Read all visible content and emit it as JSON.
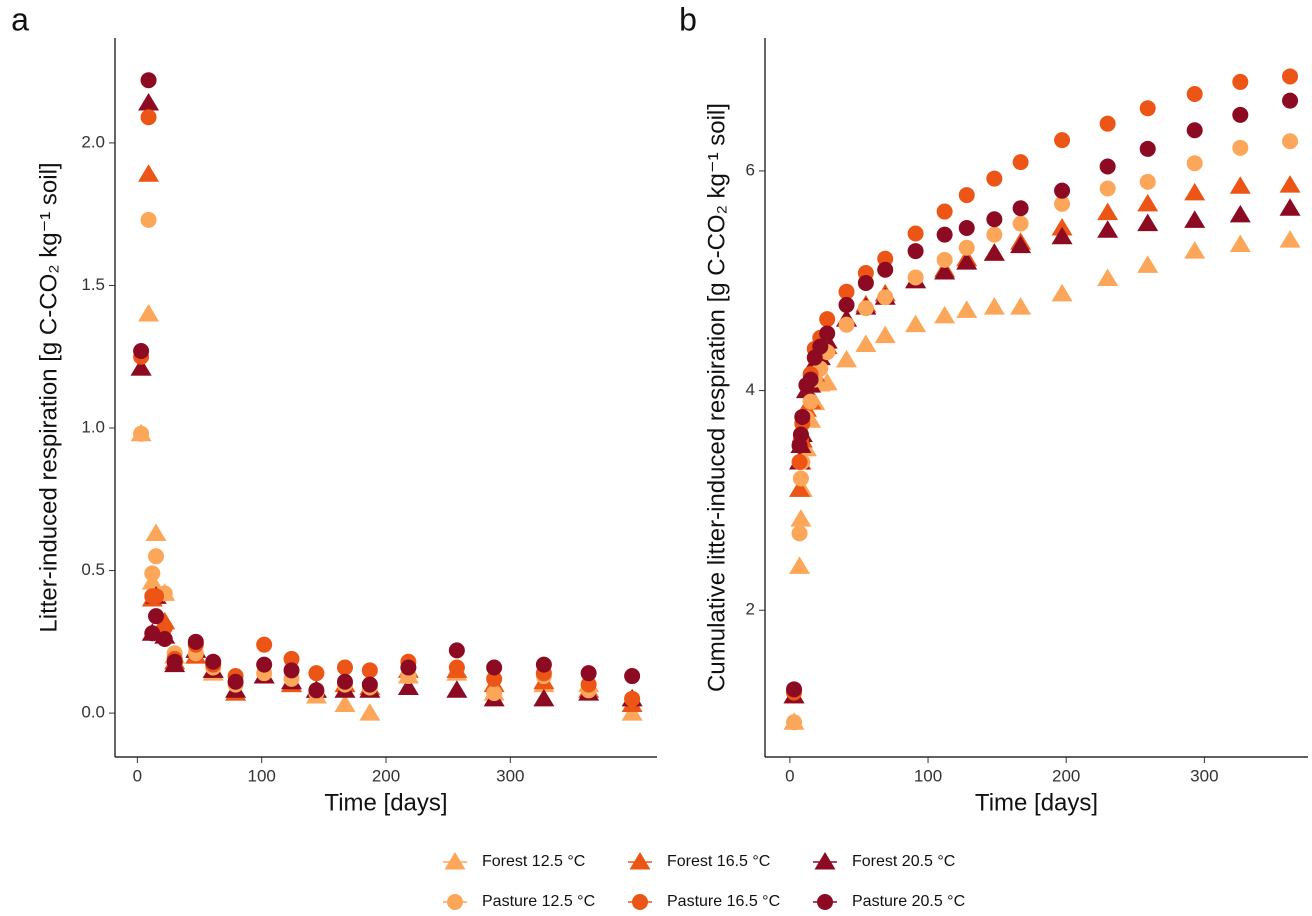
{
  "charts": [
    {
      "type": "scatter",
      "title": "a",
      "x_label": "Time [days]",
      "y_label": "Litter-induced respiration [g C-CO₂ kg⁻¹ soil]",
      "x": [
        3,
        9,
        12,
        15,
        22,
        30,
        47,
        61,
        79,
        102,
        124,
        144,
        167,
        187,
        218,
        257,
        287,
        327,
        363,
        398
      ],
      "xlim": [
        -18,
        418
      ],
      "xticks": [
        0,
        100,
        200,
        300
      ],
      "ylim": [
        -0.154,
        2.368
      ],
      "yticks": [
        {
          "value": 0,
          "label": "0.0"
        },
        0.5,
        {
          "value": 1,
          "label": "1.0"
        },
        1.5,
        {
          "value": 2,
          "label": "2.0"
        }
      ],
      "series": [
        {
          "color": "#fca65a",
          "marker": "triangle",
          "values": [
            0.98,
            1.4,
            0.46,
            0.63,
            0.42,
            0.2,
            0.2,
            0.14,
            0.07,
            0.13,
            0.1,
            0.06,
            0.03,
            0.0,
            0.13,
            0.14,
            0.07,
            0.1,
            0.1,
            0.0
          ]
        },
        {
          "color": "#ec5516",
          "marker": "triangle",
          "values": [
            1.21,
            1.89,
            0.4,
            0.41,
            0.32,
            0.18,
            0.2,
            0.15,
            0.07,
            0.13,
            0.1,
            0.08,
            0.1,
            0.09,
            0.15,
            0.15,
            0.1,
            0.11,
            0.08,
            0.03
          ]
        },
        {
          "color": "#8c0a22",
          "marker": "triangle",
          "values": [
            1.21,
            2.14,
            0.28,
            0.41,
            0.27,
            0.17,
            0.22,
            0.15,
            0.08,
            0.13,
            0.11,
            0.08,
            0.08,
            0.08,
            0.09,
            0.08,
            0.05,
            0.05,
            0.07,
            0.05
          ]
        },
        {
          "color": "#fca65a",
          "marker": "circle",
          "values": [
            0.98,
            1.73,
            0.49,
            0.55,
            0.42,
            0.21,
            0.21,
            0.16,
            0.1,
            0.14,
            0.12,
            0.07,
            0.1,
            0.09,
            0.13,
            0.16,
            0.07,
            0.13,
            0.08,
            0.05
          ]
        },
        {
          "color": "#ec5516",
          "marker": "circle",
          "values": [
            1.25,
            2.09,
            0.41,
            0.41,
            0.3,
            0.19,
            0.24,
            0.17,
            0.13,
            0.24,
            0.19,
            0.14,
            0.16,
            0.15,
            0.18,
            0.16,
            0.12,
            0.14,
            0.1,
            0.05
          ]
        },
        {
          "color": "#8c0a22",
          "marker": "circle",
          "values": [
            1.27,
            2.22,
            0.28,
            0.34,
            0.26,
            0.18,
            0.25,
            0.18,
            0.11,
            0.17,
            0.15,
            0.08,
            0.11,
            0.1,
            0.16,
            0.22,
            0.16,
            0.17,
            0.14,
            0.13
          ]
        }
      ]
    },
    {
      "type": "scatter",
      "title": "b",
      "x_label": "Time [days]",
      "y_label": "Cumulative litter-induced respiration [g C-CO₂ kg⁻¹ soil]",
      "x": [
        3,
        7,
        8,
        9,
        12,
        15,
        18,
        22,
        27,
        41,
        55,
        69,
        91,
        112,
        128,
        148,
        167,
        197,
        230,
        259,
        293,
        326,
        362
      ],
      "xlim": [
        -18,
        375
      ],
      "xticks": [
        0,
        100,
        200,
        300
      ],
      "ylim": [
        0.664,
        7.21
      ],
      "yticks": [
        2,
        4,
        6
      ],
      "series": [
        {
          "color": "#fca65a",
          "marker": "triangle",
          "values": [
            0.98,
            2.4,
            2.83,
            3.1,
            3.47,
            3.73,
            3.89,
            4.06,
            4.07,
            4.28,
            4.42,
            4.5,
            4.6,
            4.68,
            4.73,
            4.76,
            4.76,
            4.88,
            5.02,
            5.14,
            5.27,
            5.33,
            5.37
          ]
        },
        {
          "color": "#ec5516",
          "marker": "triangle",
          "values": [
            1.22,
            3.1,
            3.35,
            3.55,
            3.83,
            3.9,
            4.15,
            4.3,
            4.4,
            4.65,
            4.78,
            4.88,
            5.0,
            5.1,
            5.2,
            5.25,
            5.35,
            5.48,
            5.62,
            5.7,
            5.8,
            5.86,
            5.87
          ]
        },
        {
          "color": "#8c0a22",
          "marker": "triangle",
          "values": [
            1.22,
            3.35,
            3.5,
            3.6,
            4.0,
            4.05,
            4.25,
            4.3,
            4.45,
            4.65,
            4.76,
            4.85,
            5.0,
            5.08,
            5.17,
            5.25,
            5.32,
            5.4,
            5.46,
            5.52,
            5.55,
            5.6,
            5.66
          ]
        },
        {
          "color": "#fca65a",
          "marker": "circle",
          "values": [
            0.98,
            2.7,
            3.2,
            3.35,
            3.75,
            3.9,
            4.1,
            4.2,
            4.35,
            4.6,
            4.75,
            4.85,
            5.03,
            5.19,
            5.3,
            5.42,
            5.52,
            5.7,
            5.84,
            5.9,
            6.07,
            6.21,
            6.27
          ]
        },
        {
          "color": "#ec5516",
          "marker": "circle",
          "values": [
            1.25,
            3.35,
            3.55,
            3.7,
            4.05,
            4.15,
            4.38,
            4.48,
            4.65,
            4.9,
            5.07,
            5.2,
            5.43,
            5.63,
            5.78,
            5.93,
            6.08,
            6.28,
            6.43,
            6.57,
            6.7,
            6.81,
            6.86
          ]
        },
        {
          "color": "#8c0a22",
          "marker": "circle",
          "values": [
            1.28,
            3.5,
            3.6,
            3.76,
            4.05,
            4.1,
            4.3,
            4.4,
            4.52,
            4.78,
            4.98,
            5.1,
            5.27,
            5.42,
            5.48,
            5.56,
            5.66,
            5.82,
            6.04,
            6.2,
            6.37,
            6.51,
            6.64
          ]
        }
      ]
    }
  ],
  "legend": [
    {
      "name": "Forest 12.5 °C",
      "color": "#fca65a",
      "marker": "triangle"
    },
    {
      "name": "Forest 16.5 °C",
      "color": "#ec5516",
      "marker": "triangle"
    },
    {
      "name": "Forest 20.5 °C",
      "color": "#8c0a22",
      "marker": "triangle"
    },
    {
      "name": "Pasture 12.5 °C",
      "color": "#fca65a",
      "marker": "circle"
    },
    {
      "name": "Pasture 16.5 °C",
      "color": "#ec5516",
      "marker": "circle"
    },
    {
      "name": "Pasture 20.5 °C",
      "color": "#8c0a22",
      "marker": "circle"
    }
  ]
}
